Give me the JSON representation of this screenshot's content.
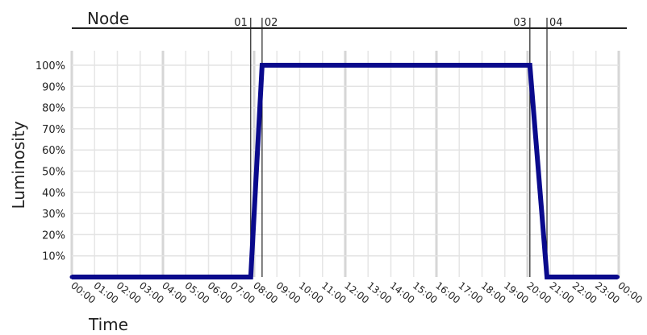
{
  "chart_data": {
    "type": "line",
    "node_title": "Node",
    "xlabel": "Time",
    "ylabel": "Luminosity",
    "x_ticks": [
      "00:00",
      "01:00",
      "02:00",
      "03:00",
      "04:00",
      "05:00",
      "06:00",
      "07:00",
      "08:00",
      "09:00",
      "10:00",
      "11:00",
      "12:00",
      "13:00",
      "14:00",
      "15:00",
      "16:00",
      "17:00",
      "18:00",
      "19:00",
      "20:00",
      "21:00",
      "22:00",
      "23:00",
      "00:00"
    ],
    "y_ticks": [
      "10%",
      "20%",
      "30%",
      "40%",
      "50%",
      "60%",
      "70%",
      "80%",
      "90%",
      "100%"
    ],
    "xlim_hours": [
      0,
      24
    ],
    "ylim": [
      0,
      100
    ],
    "grid": true,
    "line_color": "#0a0a8c",
    "series": [
      {
        "points": [
          {
            "hour": 0,
            "value": 0
          },
          {
            "hour": 7.85,
            "value": 0
          },
          {
            "hour": 8.35,
            "value": 100
          },
          {
            "hour": 20.1,
            "value": 100
          },
          {
            "hour": 20.85,
            "value": 0
          },
          {
            "hour": 23.95,
            "value": 0
          }
        ]
      }
    ],
    "nodes": [
      {
        "label": "01",
        "hour": 7.85
      },
      {
        "label": "02",
        "hour": 8.35
      },
      {
        "label": "03",
        "hour": 20.1
      },
      {
        "label": "04",
        "hour": 20.85
      }
    ]
  }
}
